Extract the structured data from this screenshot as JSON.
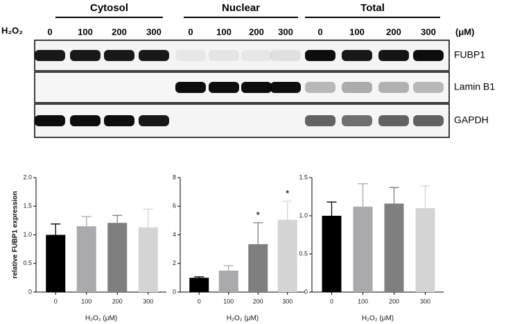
{
  "blot": {
    "reagent": "H₂O₂",
    "unit": "(μM)",
    "groups": [
      {
        "name": "Cytosol",
        "lanes": [
          "0",
          "100",
          "200",
          "300"
        ]
      },
      {
        "name": "Nuclear",
        "lanes": [
          "0",
          "100",
          "200",
          "300"
        ]
      },
      {
        "name": "Total",
        "lanes": [
          "0",
          "100",
          "200",
          "300"
        ]
      }
    ],
    "proteins": [
      "FUBP1",
      "Lamin B1",
      "GAPDH"
    ]
  },
  "chart_data": [
    {
      "type": "bar",
      "y_label": "relative FUBP1 expression",
      "x_label": "H₂O₂ (μM)",
      "categories": [
        "0",
        "100",
        "200",
        "300"
      ],
      "values": [
        1.0,
        1.15,
        1.21,
        1.13
      ],
      "errors": [
        0.19,
        0.17,
        0.13,
        0.32
      ],
      "colors": [
        "#000000",
        "#a9a9ae",
        "#7f7f7f",
        "#d4d4d4"
      ],
      "ylim": [
        0,
        2
      ],
      "yticks": [
        0,
        0.5,
        {
          "value": 1,
          "label": "1.0"
        },
        1.5,
        {
          "value": 2,
          "label": "2.0"
        }
      ]
    },
    {
      "type": "bar",
      "x_label": "H₂O₂ (μM)",
      "categories": [
        "0",
        "100",
        "200",
        "300"
      ],
      "values": [
        1.0,
        1.5,
        3.35,
        5.05
      ],
      "errors": [
        0.07,
        0.35,
        1.5,
        1.3
      ],
      "colors": [
        "#000000",
        "#a9a9ae",
        "#7f7f7f",
        "#d4d4d4"
      ],
      "ylim": [
        0,
        8
      ],
      "yticks": [
        0,
        2,
        4,
        6,
        8
      ],
      "annotations": [
        {
          "x": "200",
          "text": "*"
        },
        {
          "x": "300",
          "text": "*"
        }
      ]
    },
    {
      "type": "bar",
      "x_label": "H₂O₂ (μM)",
      "categories": [
        "0",
        "100",
        "200",
        "300"
      ],
      "values": [
        1.0,
        1.12,
        1.16,
        1.1
      ],
      "errors": [
        0.18,
        0.3,
        0.21,
        0.29
      ],
      "colors": [
        "#000000",
        "#a9a9ae",
        "#7f7f7f",
        "#d4d4d4"
      ],
      "ylim": [
        0,
        1.5
      ],
      "yticks": [
        0,
        0.5,
        {
          "value": 1,
          "label": "1.0"
        },
        1.5
      ]
    }
  ]
}
